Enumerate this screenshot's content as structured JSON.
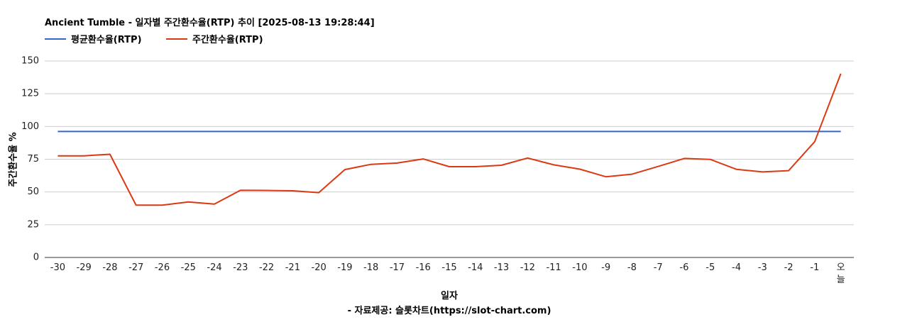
{
  "chart_data": {
    "type": "line",
    "title": "Ancient Tumble - 일자별 주간환수율(RTP) 추이 [2025-08-13 19:28:44]",
    "xlabel": "일자",
    "ylabel": "주간환수율 %",
    "source": "- 자료제공: 슬롯차트(https://slot-chart.com)",
    "ylim": [
      0,
      150
    ],
    "yticks": [
      0,
      25,
      50,
      75,
      100,
      125,
      150
    ],
    "grid": true,
    "legend_position": "top-left",
    "categories": [
      "-30",
      "-29",
      "-28",
      "-27",
      "-26",
      "-25",
      "-24",
      "-23",
      "-22",
      "-21",
      "-20",
      "-19",
      "-18",
      "-17",
      "-16",
      "-15",
      "-14",
      "-13",
      "-12",
      "-11",
      "-10",
      "-9",
      "-8",
      "-7",
      "-6",
      "-5",
      "-4",
      "-3",
      "-2",
      "-1",
      "오늘"
    ],
    "series": [
      {
        "name": "평균환수율(RTP)",
        "color": "#3366cc",
        "values": [
          96.2,
          96.2,
          96.2,
          96.2,
          96.2,
          96.2,
          96.2,
          96.2,
          96.2,
          96.2,
          96.2,
          96.2,
          96.2,
          96.2,
          96.2,
          96.2,
          96.2,
          96.2,
          96.2,
          96.2,
          96.2,
          96.2,
          96.2,
          96.2,
          96.2,
          96.2,
          96.2,
          96.2,
          96.2,
          96.2,
          96.2
        ]
      },
      {
        "name": "주간환수율(RTP)",
        "color": "#dc3912",
        "values": [
          77.6,
          77.6,
          78.8,
          39.9,
          39.9,
          42.4,
          40.8,
          51.3,
          51.2,
          50.9,
          49.5,
          67.1,
          71.1,
          72.1,
          75.2,
          69.3,
          69.3,
          70.4,
          75.9,
          70.7,
          67.4,
          61.6,
          63.6,
          69.5,
          75.6,
          74.9,
          67.3,
          65.3,
          66.3,
          88.4,
          140.3
        ]
      }
    ]
  }
}
